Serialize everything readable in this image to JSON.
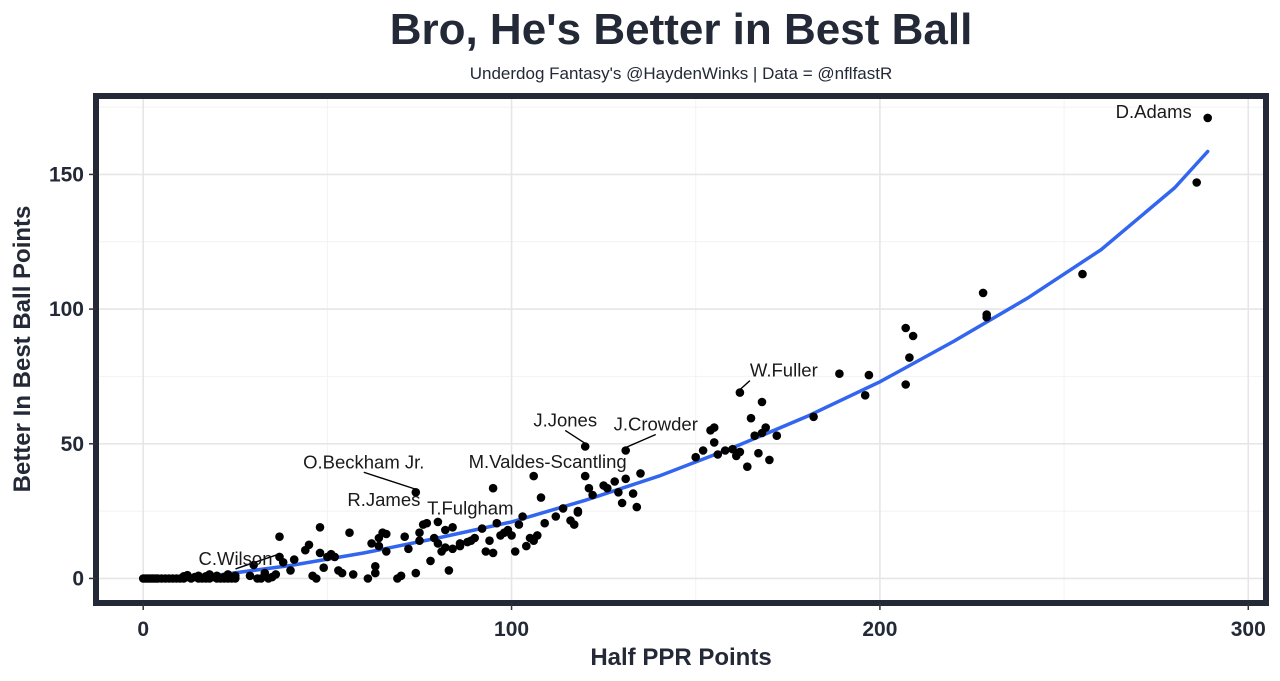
{
  "chart_data": {
    "type": "scatter",
    "title": "Bro, He's Better in Best Ball",
    "subtitle": "Underdog Fantasy's @HaydenWinks | Data = @nflfastR",
    "xlabel": "Half PPR Points",
    "ylabel": "Better In Best Ball Points",
    "xlim": [
      -12,
      304
    ],
    "ylim": [
      -8,
      178
    ],
    "x_ticks": [
      0,
      100,
      200,
      300
    ],
    "y_ticks": [
      0,
      50,
      100,
      150
    ],
    "grid": true,
    "points": [
      [
        0,
        0
      ],
      [
        0.5,
        0
      ],
      [
        1,
        0
      ],
      [
        1.5,
        0
      ],
      [
        2,
        0
      ],
      [
        2.5,
        0
      ],
      [
        3,
        0
      ],
      [
        3.5,
        0
      ],
      [
        4,
        0
      ],
      [
        5,
        0
      ],
      [
        6,
        0
      ],
      [
        7,
        0
      ],
      [
        8,
        0
      ],
      [
        9,
        0
      ],
      [
        10,
        0
      ],
      [
        11,
        0
      ],
      [
        12,
        0.5
      ],
      [
        13,
        0
      ],
      [
        14,
        0.5
      ],
      [
        15,
        0
      ],
      [
        16,
        0
      ],
      [
        17,
        0
      ],
      [
        18,
        0
      ],
      [
        19,
        0.5
      ],
      [
        20,
        0
      ],
      [
        21,
        0
      ],
      [
        22,
        0
      ],
      [
        23,
        0
      ],
      [
        24,
        0
      ],
      [
        25,
        0
      ],
      [
        12,
        1.2
      ],
      [
        15,
        1
      ],
      [
        18,
        1.5
      ],
      [
        20,
        1
      ],
      [
        23,
        1.5
      ],
      [
        25,
        1
      ],
      [
        29,
        1
      ],
      [
        31,
        0
      ],
      [
        32,
        0
      ],
      [
        34,
        0
      ],
      [
        35,
        0.5
      ],
      [
        36,
        1.5
      ],
      [
        11,
        0.8
      ],
      [
        17,
        0.8
      ],
      [
        22,
        0.5
      ],
      [
        30,
        5
      ],
      [
        33,
        2
      ],
      [
        37,
        8
      ],
      [
        37,
        15.5
      ],
      [
        38,
        6
      ],
      [
        40,
        3
      ],
      [
        41,
        7
      ],
      [
        44,
        10.5
      ],
      [
        45,
        12.5
      ],
      [
        46,
        1
      ],
      [
        47,
        0
      ],
      [
        48,
        9.5
      ],
      [
        49,
        4
      ],
      [
        50,
        8
      ],
      [
        51,
        9
      ],
      [
        52,
        8
      ],
      [
        53,
        3
      ],
      [
        54,
        2
      ],
      [
        48,
        19
      ],
      [
        56,
        17
      ],
      [
        57,
        1.5
      ],
      [
        61,
        0
      ],
      [
        62,
        13
      ],
      [
        63,
        2
      ],
      [
        63,
        4.5
      ],
      [
        64,
        12
      ],
      [
        64,
        15
      ],
      [
        65,
        17
      ],
      [
        66,
        10
      ],
      [
        66,
        16.5
      ],
      [
        69,
        0
      ],
      [
        70,
        1
      ],
      [
        71,
        15.5
      ],
      [
        72,
        11
      ],
      [
        74,
        2
      ],
      [
        75,
        14
      ],
      [
        75,
        17
      ],
      [
        76,
        20
      ],
      [
        77,
        20.5
      ],
      [
        78,
        6.5
      ],
      [
        79,
        15
      ],
      [
        80,
        13
      ],
      [
        80,
        21
      ],
      [
        81,
        10
      ],
      [
        82,
        18
      ],
      [
        82,
        11.5
      ],
      [
        83,
        3
      ],
      [
        84,
        11
      ],
      [
        84,
        19
      ],
      [
        86,
        12
      ],
      [
        86,
        13
      ],
      [
        88,
        13.5
      ],
      [
        89,
        14
      ],
      [
        90,
        15
      ],
      [
        92,
        18.5
      ],
      [
        93,
        10
      ],
      [
        94,
        14
      ],
      [
        95,
        9.5
      ],
      [
        96,
        20.5
      ],
      [
        97,
        16
      ],
      [
        98,
        17
      ],
      [
        99,
        18
      ],
      [
        100,
        16
      ],
      [
        101,
        10
      ],
      [
        102,
        20
      ],
      [
        103,
        23
      ],
      [
        104,
        12
      ],
      [
        105,
        15
      ],
      [
        106,
        38
      ],
      [
        106,
        14
      ],
      [
        107,
        16
      ],
      [
        108,
        30
      ],
      [
        109,
        20.5
      ],
      [
        112,
        23
      ],
      [
        114,
        26
      ],
      [
        116,
        21.5
      ],
      [
        117,
        20
      ],
      [
        118,
        25
      ],
      [
        118,
        24.5
      ],
      [
        120,
        38
      ],
      [
        121,
        33.5
      ],
      [
        122,
        31
      ],
      [
        125,
        34.5
      ],
      [
        126,
        33.5
      ],
      [
        128,
        36
      ],
      [
        129,
        32
      ],
      [
        130,
        28
      ],
      [
        131,
        37
      ],
      [
        133,
        31.5
      ],
      [
        134,
        26.5
      ],
      [
        135,
        39
      ],
      [
        95,
        33.5
      ],
      [
        74,
        32
      ],
      [
        120,
        49
      ],
      [
        131,
        47.5
      ],
      [
        150,
        45
      ],
      [
        152,
        47.5
      ],
      [
        154,
        55
      ],
      [
        155,
        56
      ],
      [
        155,
        50.5
      ],
      [
        156,
        46
      ],
      [
        158,
        47.5
      ],
      [
        160,
        48
      ],
      [
        161,
        45.5
      ],
      [
        162,
        47
      ],
      [
        162,
        69
      ],
      [
        164,
        41.5
      ],
      [
        165,
        59.5
      ],
      [
        166,
        53
      ],
      [
        167,
        46.5
      ],
      [
        168,
        65.5
      ],
      [
        168,
        54
      ],
      [
        169,
        56
      ],
      [
        170,
        44
      ],
      [
        172,
        53
      ],
      [
        182,
        60
      ],
      [
        189,
        76
      ],
      [
        196,
        68
      ],
      [
        197,
        75.5
      ],
      [
        207,
        93
      ],
      [
        207,
        72
      ],
      [
        208,
        82
      ],
      [
        209,
        90
      ],
      [
        228,
        106
      ],
      [
        229,
        98
      ],
      [
        229,
        97
      ],
      [
        255,
        113
      ],
      [
        286,
        147
      ],
      [
        289,
        171
      ]
    ],
    "trend_curve": [
      [
        0,
        0
      ],
      [
        20,
        1.2
      ],
      [
        40,
        4.8
      ],
      [
        60,
        9.5
      ],
      [
        80,
        15
      ],
      [
        100,
        21
      ],
      [
        120,
        29
      ],
      [
        140,
        38
      ],
      [
        160,
        48.5
      ],
      [
        180,
        60
      ],
      [
        200,
        73
      ],
      [
        220,
        88
      ],
      [
        240,
        104
      ],
      [
        260,
        122
      ],
      [
        280,
        145
      ],
      [
        289,
        158.5
      ]
    ],
    "labels": [
      {
        "text": "D.Adams",
        "x": 289,
        "y": 171
      },
      {
        "text": "W.Fuller",
        "x": 162,
        "y": 69
      },
      {
        "text": "J.Jones",
        "x": 120,
        "y": 49
      },
      {
        "text": "J.Crowder",
        "x": 131,
        "y": 47.5
      },
      {
        "text": "O.Beckham Jr.",
        "x": 74,
        "y": 32
      },
      {
        "text": "M.Valdes-Scantling",
        "x": 106,
        "y": 38
      },
      {
        "text": "R.James",
        "x": 61,
        "y": 24
      },
      {
        "text": "T.Fulgham",
        "x": 85,
        "y": 20
      },
      {
        "text": "C.Wilson",
        "x": 37,
        "y": 8
      }
    ],
    "point_color": "#000000",
    "trend_color": "#3366ee"
  }
}
